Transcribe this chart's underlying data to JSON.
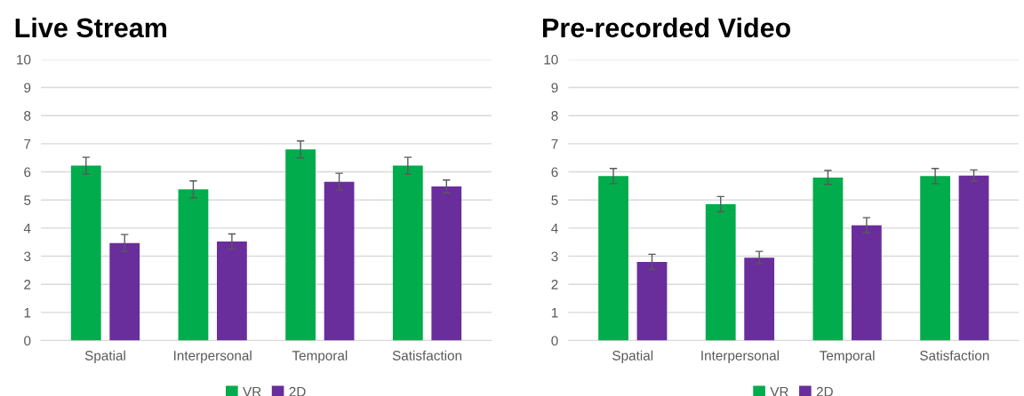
{
  "chart_data": [
    {
      "type": "bar",
      "title": "Live Stream",
      "categories": [
        "Spatial",
        "Interpersonal",
        "Temporal",
        "Satisfaction"
      ],
      "series": [
        {
          "name": "VR",
          "color": "#00ac4b",
          "values": [
            6.22,
            5.38,
            6.8,
            6.22
          ],
          "errors": [
            0.3,
            0.3,
            0.3,
            0.3
          ]
        },
        {
          "name": "2D",
          "color": "#6a2d9c",
          "values": [
            3.47,
            3.52,
            5.65,
            5.48
          ],
          "errors": [
            0.3,
            0.27,
            0.3,
            0.23
          ]
        }
      ],
      "ylim": [
        0,
        10
      ],
      "yticks": [
        0,
        1,
        2,
        3,
        4,
        5,
        6,
        7,
        8,
        9,
        10
      ],
      "grid": "y",
      "legend": "bottom"
    },
    {
      "type": "bar",
      "title": "Pre-recorded Video",
      "categories": [
        "Spatial",
        "Interpersonal",
        "Temporal",
        "Satisfaction"
      ],
      "series": [
        {
          "name": "VR",
          "color": "#00ac4b",
          "values": [
            5.85,
            4.85,
            5.8,
            5.85
          ],
          "errors": [
            0.27,
            0.27,
            0.25,
            0.27
          ]
        },
        {
          "name": "2D",
          "color": "#6a2d9c",
          "values": [
            2.8,
            2.95,
            4.1,
            5.87
          ],
          "errors": [
            0.27,
            0.22,
            0.27,
            0.2
          ]
        }
      ],
      "ylim": [
        0,
        10
      ],
      "yticks": [
        0,
        1,
        2,
        3,
        4,
        5,
        6,
        7,
        8,
        9,
        10
      ],
      "grid": "y",
      "legend": "bottom"
    }
  ]
}
